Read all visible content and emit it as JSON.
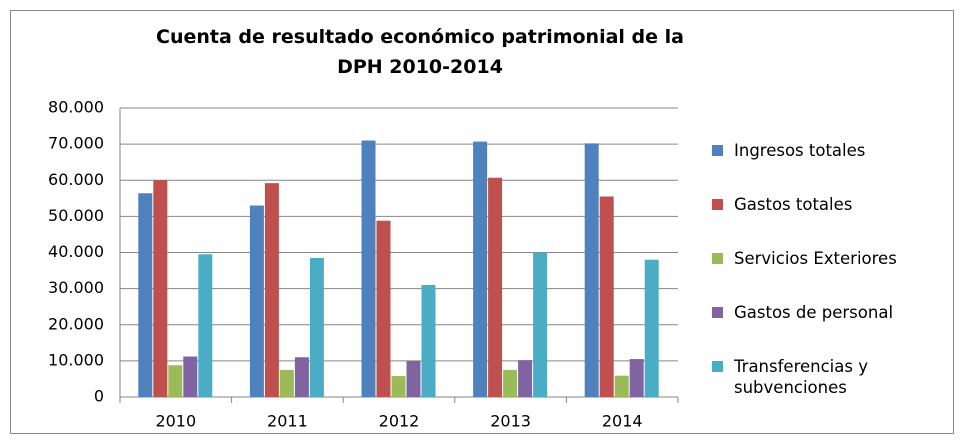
{
  "chart_data": {
    "type": "bar",
    "title": "Cuenta de resultado económico  patrimonial de la DPH 2010-2014",
    "categories": [
      "2010",
      "2011",
      "2012",
      "2013",
      "2014"
    ],
    "series": [
      {
        "name": "Ingresos totales",
        "color": "#4f81bd",
        "values": [
          56400,
          53000,
          71000,
          70700,
          70200
        ]
      },
      {
        "name": "Gastos totales",
        "color": "#c0504d",
        "values": [
          60000,
          59200,
          48800,
          60700,
          55500
        ]
      },
      {
        "name": "Servicios Exteriores",
        "color": "#9bbb59",
        "values": [
          8800,
          7500,
          5800,
          7500,
          5900
        ]
      },
      {
        "name": "Gastos de personal",
        "color": "#8064a2",
        "values": [
          11200,
          11000,
          10000,
          10200,
          10500
        ]
      },
      {
        "name": "Transferencias y subvenciones",
        "color": "#4bacc6",
        "values": [
          39500,
          38500,
          31000,
          40000,
          38000
        ]
      }
    ],
    "ylim": [
      0,
      80000
    ],
    "yticks": [
      0,
      {
        "value": 10000,
        "label": "10.000"
      },
      {
        "value": 20000,
        "label": "20.000"
      },
      {
        "value": 30000,
        "label": "30.000"
      },
      {
        "value": 40000,
        "label": "40.000"
      },
      {
        "value": 50000,
        "label": "50.000"
      },
      {
        "value": 60000,
        "label": "60.000"
      },
      {
        "value": 70000,
        "label": "70.000"
      },
      {
        "value": 80000,
        "label": "80.000"
      }
    ],
    "grid": true,
    "legend": "right"
  }
}
